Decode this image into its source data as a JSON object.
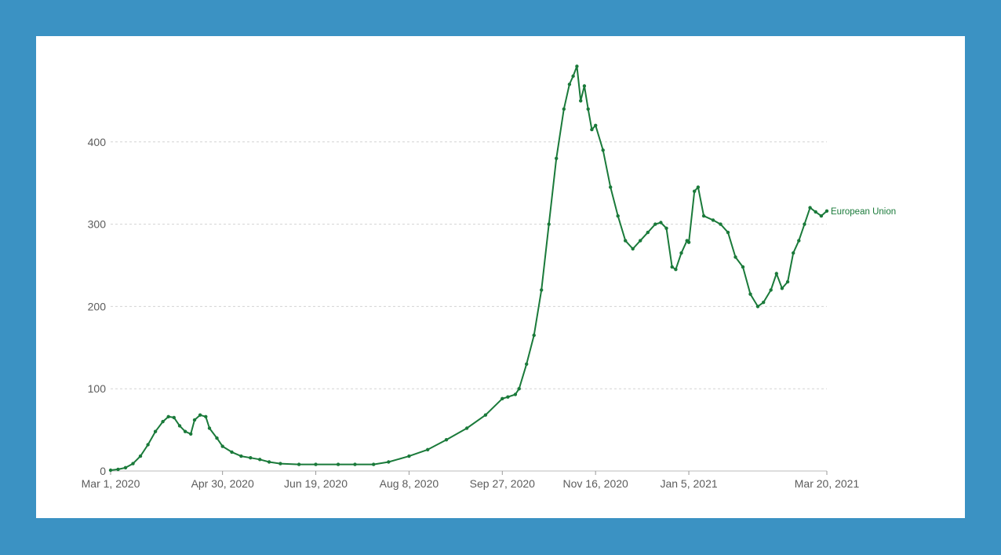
{
  "chart_data": {
    "type": "line",
    "title": "",
    "xlabel": "",
    "ylabel": "",
    "x_range": [
      "2020-03-01",
      "2021-03-20"
    ],
    "ylim": [
      0,
      500
    ],
    "y_ticks": [
      0,
      100,
      200,
      300,
      400
    ],
    "x_tick_labels": [
      {
        "date": "2020-03-01",
        "label": "Mar 1, 2020"
      },
      {
        "date": "2020-04-30",
        "label": "Apr 30, 2020"
      },
      {
        "date": "2020-06-19",
        "label": "Jun 19, 2020"
      },
      {
        "date": "2020-08-08",
        "label": "Aug 8, 2020"
      },
      {
        "date": "2020-09-27",
        "label": "Sep 27, 2020"
      },
      {
        "date": "2020-11-16",
        "label": "Nov 16, 2020"
      },
      {
        "date": "2021-01-05",
        "label": "Jan 5, 2021"
      },
      {
        "date": "2021-03-20",
        "label": "Mar 20, 2021"
      }
    ],
    "grid": "horizontal dashed",
    "series": [
      {
        "name": "European Union",
        "color": "#1a7a3a",
        "points": [
          [
            "2020-03-01",
            1
          ],
          [
            "2020-03-05",
            2
          ],
          [
            "2020-03-09",
            4
          ],
          [
            "2020-03-13",
            9
          ],
          [
            "2020-03-17",
            18
          ],
          [
            "2020-03-21",
            32
          ],
          [
            "2020-03-25",
            48
          ],
          [
            "2020-03-29",
            60
          ],
          [
            "2020-04-01",
            66
          ],
          [
            "2020-04-04",
            65
          ],
          [
            "2020-04-07",
            55
          ],
          [
            "2020-04-10",
            48
          ],
          [
            "2020-04-13",
            45
          ],
          [
            "2020-04-15",
            62
          ],
          [
            "2020-04-18",
            68
          ],
          [
            "2020-04-21",
            66
          ],
          [
            "2020-04-23",
            52
          ],
          [
            "2020-04-27",
            40
          ],
          [
            "2020-04-30",
            30
          ],
          [
            "2020-05-05",
            23
          ],
          [
            "2020-05-10",
            18
          ],
          [
            "2020-05-15",
            16
          ],
          [
            "2020-05-20",
            14
          ],
          [
            "2020-05-25",
            11
          ],
          [
            "2020-05-31",
            9
          ],
          [
            "2020-06-10",
            8
          ],
          [
            "2020-06-19",
            8
          ],
          [
            "2020-07-01",
            8
          ],
          [
            "2020-07-10",
            8
          ],
          [
            "2020-07-20",
            8
          ],
          [
            "2020-07-28",
            11
          ],
          [
            "2020-08-08",
            18
          ],
          [
            "2020-08-18",
            26
          ],
          [
            "2020-08-28",
            38
          ],
          [
            "2020-09-08",
            52
          ],
          [
            "2020-09-18",
            68
          ],
          [
            "2020-09-27",
            88
          ],
          [
            "2020-09-30",
            90
          ],
          [
            "2020-10-04",
            93
          ],
          [
            "2020-10-06",
            100
          ],
          [
            "2020-10-10",
            130
          ],
          [
            "2020-10-14",
            165
          ],
          [
            "2020-10-18",
            220
          ],
          [
            "2020-10-22",
            300
          ],
          [
            "2020-10-26",
            380
          ],
          [
            "2020-10-30",
            440
          ],
          [
            "2020-11-02",
            470
          ],
          [
            "2020-11-04",
            480
          ],
          [
            "2020-11-06",
            492
          ],
          [
            "2020-11-08",
            450
          ],
          [
            "2020-11-10",
            468
          ],
          [
            "2020-11-12",
            440
          ],
          [
            "2020-11-14",
            415
          ],
          [
            "2020-11-16",
            420
          ],
          [
            "2020-11-20",
            390
          ],
          [
            "2020-11-24",
            345
          ],
          [
            "2020-11-28",
            310
          ],
          [
            "2020-12-02",
            280
          ],
          [
            "2020-12-06",
            270
          ],
          [
            "2020-12-10",
            280
          ],
          [
            "2020-12-14",
            290
          ],
          [
            "2020-12-18",
            300
          ],
          [
            "2020-12-21",
            302
          ],
          [
            "2020-12-24",
            295
          ],
          [
            "2020-12-27",
            248
          ],
          [
            "2020-12-29",
            245
          ],
          [
            "2021-01-01",
            265
          ],
          [
            "2021-01-04",
            280
          ],
          [
            "2021-01-05",
            278
          ],
          [
            "2021-01-08",
            340
          ],
          [
            "2021-01-10",
            345
          ],
          [
            "2021-01-13",
            310
          ],
          [
            "2021-01-18",
            305
          ],
          [
            "2021-01-22",
            300
          ],
          [
            "2021-01-26",
            290
          ],
          [
            "2021-01-30",
            260
          ],
          [
            "2021-02-03",
            248
          ],
          [
            "2021-02-07",
            215
          ],
          [
            "2021-02-11",
            200
          ],
          [
            "2021-02-14",
            205
          ],
          [
            "2021-02-18",
            220
          ],
          [
            "2021-02-21",
            240
          ],
          [
            "2021-02-24",
            222
          ],
          [
            "2021-02-27",
            230
          ],
          [
            "2021-03-02",
            265
          ],
          [
            "2021-03-05",
            280
          ],
          [
            "2021-03-08",
            300
          ],
          [
            "2021-03-11",
            320
          ],
          [
            "2021-03-14",
            315
          ],
          [
            "2021-03-17",
            310
          ],
          [
            "2021-03-20",
            316
          ]
        ]
      }
    ]
  }
}
